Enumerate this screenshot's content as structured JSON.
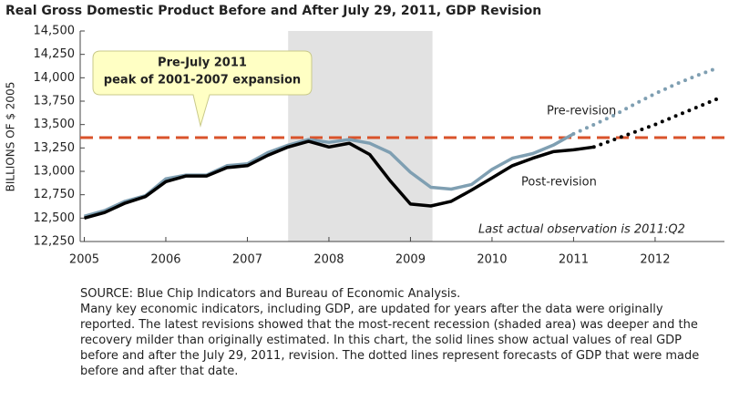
{
  "chart_data": {
    "type": "line",
    "title": "Real Gross Domestic Product Before and After July 29, 2011, GDP Revision",
    "y_label": "BILLIONS OF $ 2005",
    "x": [
      2005,
      2005.25,
      2005.5,
      2005.75,
      2006,
      2006.25,
      2006.5,
      2006.75,
      2007,
      2007.25,
      2007.5,
      2007.75,
      2008,
      2008.25,
      2008.5,
      2008.75,
      2009,
      2009.25,
      2009.5,
      2009.75,
      2010,
      2010.25,
      2010.5,
      2010.75,
      2011,
      2011.25,
      2011.5,
      2011.75,
      2012,
      2012.25,
      2012.5,
      2012.75
    ],
    "series": [
      {
        "name": "Pre-revision",
        "color": "#7f9fb2",
        "values": [
          12520,
          12580,
          12680,
          12740,
          12920,
          12960,
          12960,
          13060,
          13080,
          13200,
          13280,
          13340,
          13310,
          13340,
          13300,
          13200,
          12990,
          12830,
          12810,
          12860,
          13020,
          13140,
          13190,
          13280,
          13400,
          null,
          null,
          null,
          null,
          null,
          null,
          null
        ],
        "forecast_values": [
          null,
          null,
          null,
          null,
          null,
          null,
          null,
          null,
          null,
          null,
          null,
          null,
          null,
          null,
          null,
          null,
          null,
          null,
          null,
          null,
          null,
          null,
          null,
          null,
          13400,
          13500,
          13600,
          13720,
          13830,
          13930,
          14020,
          14100
        ]
      },
      {
        "name": "Post-revision",
        "color": "#000000",
        "values": [
          12500,
          12560,
          12660,
          12730,
          12890,
          12950,
          12950,
          13040,
          13060,
          13170,
          13260,
          13320,
          13260,
          13300,
          13180,
          12900,
          12650,
          12630,
          12680,
          12800,
          12930,
          13060,
          13140,
          13210,
          13230,
          13260,
          null,
          null,
          null,
          null,
          null,
          null
        ],
        "forecast_values": [
          null,
          null,
          null,
          null,
          null,
          null,
          null,
          null,
          null,
          null,
          null,
          null,
          null,
          null,
          null,
          null,
          null,
          null,
          null,
          null,
          null,
          null,
          null,
          null,
          null,
          13260,
          13340,
          13420,
          13500,
          13590,
          13680,
          13770
        ]
      }
    ],
    "peak_line": 13360,
    "peak_line_color": "#d9532b",
    "shaded_range": [
      2007.5,
      2009.27
    ],
    "shade_color": "#e2e2e2",
    "callout": [
      "Pre-July 2011",
      "peak of 2001-2007 expansion"
    ],
    "note_last_actual": "Last actual observation is 2011:Q2",
    "xlim": [
      2004.95,
      2012.85
    ],
    "xticks": [
      2005,
      2006,
      2007,
      2008,
      2009,
      2010,
      2011,
      2012
    ],
    "ylim": [
      12250,
      14500
    ],
    "yticks": [
      {
        "value": 12250,
        "label": "12,250"
      },
      {
        "value": 12500,
        "label": "12,500"
      },
      {
        "value": 12750,
        "label": "12,750"
      },
      {
        "value": 13000,
        "label": "13,000"
      },
      {
        "value": 13250,
        "label": "13,250"
      },
      {
        "value": 13500,
        "label": "13,500"
      },
      {
        "value": 13750,
        "label": "13,750"
      },
      {
        "value": 14000,
        "label": "14,000"
      },
      {
        "value": 14250,
        "label": "14,250"
      },
      {
        "value": 14500,
        "label": "14,500"
      }
    ],
    "source": "SOURCE: Blue Chip Indicators and Bureau of Economic Analysis.",
    "note": "Many key economic indicators, including GDP, are updated for years after the data were originally reported. The latest revisions showed that the most-recent recession (shaded area) was deeper and the recovery milder than originally estimated. In this chart, the solid lines show actual values of real GDP before and after the July 29, 2011, revision. The dotted lines represent forecasts of GDP that were made before and after that date."
  }
}
